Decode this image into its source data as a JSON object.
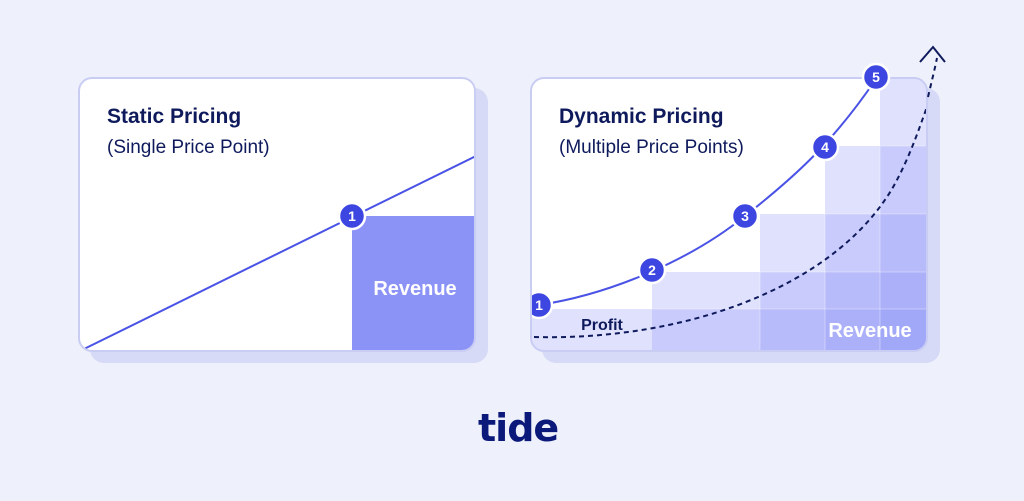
{
  "left_panel": {
    "title": "Static Pricing",
    "subtitle": "(Single Price Point)",
    "point_label": "1",
    "area_label": "Revenue"
  },
  "right_panel": {
    "title": "Dynamic Pricing",
    "subtitle": "(Multiple Price Points)",
    "point_labels": [
      "1",
      "2",
      "3",
      "4",
      "5"
    ],
    "area_label": "Revenue",
    "profit_label": "Profit"
  },
  "logo": "tide",
  "colors": {
    "background": "#eef0fb",
    "accent": "#4a53e6",
    "revenue_fill": "#8c93f7",
    "dark_text": "#0e1a5c"
  }
}
